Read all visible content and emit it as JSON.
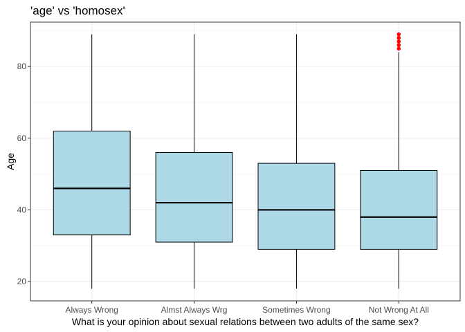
{
  "chart_data": {
    "type": "boxplot",
    "title": "'age' vs 'homosex'",
    "xlabel": "What is your opinion about sexual relations between two adults of the same sex?",
    "ylabel": "Age",
    "ylim": [
      14.6,
      92.4
    ],
    "yticks": [
      20,
      40,
      60,
      80
    ],
    "grid": true,
    "categories": [
      "Always Wrong",
      "Almst Always Wrg",
      "Sometimes Wrong",
      "Not Wrong At All"
    ],
    "boxes": [
      {
        "min": 18,
        "q1": 33,
        "median": 46,
        "q3": 62,
        "max": 89,
        "outliers": []
      },
      {
        "min": 18,
        "q1": 31,
        "median": 42,
        "q3": 56,
        "max": 89,
        "outliers": []
      },
      {
        "min": 18,
        "q1": 29,
        "median": 40,
        "q3": 53,
        "max": 89,
        "outliers": []
      },
      {
        "min": 18,
        "q1": 29,
        "median": 38,
        "q3": 51,
        "max": 84,
        "outliers": [
          85,
          86,
          87,
          88,
          89
        ]
      }
    ],
    "box_fill": "#add8e6",
    "outlier_color": "#ff0000"
  }
}
